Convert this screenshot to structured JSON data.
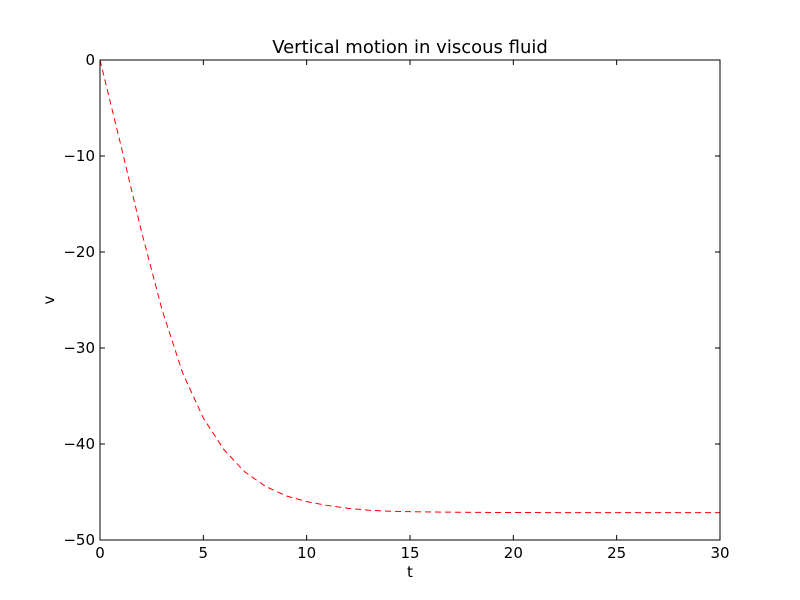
{
  "chart_data": {
    "type": "line",
    "title": "Vertical motion in viscous fluid",
    "xlabel": "t",
    "ylabel": "v",
    "xlim": [
      0,
      30
    ],
    "ylim": [
      -50,
      0
    ],
    "xticks": [
      0,
      5,
      10,
      15,
      20,
      25,
      30
    ],
    "yticks": [
      0,
      -10,
      -20,
      -30,
      -40,
      -50
    ],
    "xtick_labels": [
      "0",
      "5",
      "10",
      "15",
      "20",
      "25",
      "30"
    ],
    "ytick_labels": [
      "0",
      "−10",
      "−20",
      "−30",
      "−40",
      "−50"
    ],
    "grid": false,
    "series": [
      {
        "color": "#ff0000",
        "linestyle": "dashed",
        "x": [
          0,
          1,
          2,
          3,
          4,
          5,
          6,
          7,
          8,
          9,
          10,
          11,
          12,
          13,
          14,
          15,
          16,
          17,
          18,
          19,
          20,
          21,
          22,
          23,
          24,
          25,
          26,
          27,
          28,
          29,
          30
        ],
        "y": [
          0,
          -8.8,
          -17.8,
          -26.0,
          -32.6,
          -37.3,
          -40.6,
          -42.9,
          -44.4,
          -45.4,
          -46.0,
          -46.4,
          -46.7,
          -46.9,
          -47.0,
          -47.05,
          -47.08,
          -47.1,
          -47.12,
          -47.13,
          -47.14,
          -47.14,
          -47.15,
          -47.15,
          -47.15,
          -47.15,
          -47.15,
          -47.15,
          -47.15,
          -47.15,
          -47.15
        ]
      }
    ]
  }
}
